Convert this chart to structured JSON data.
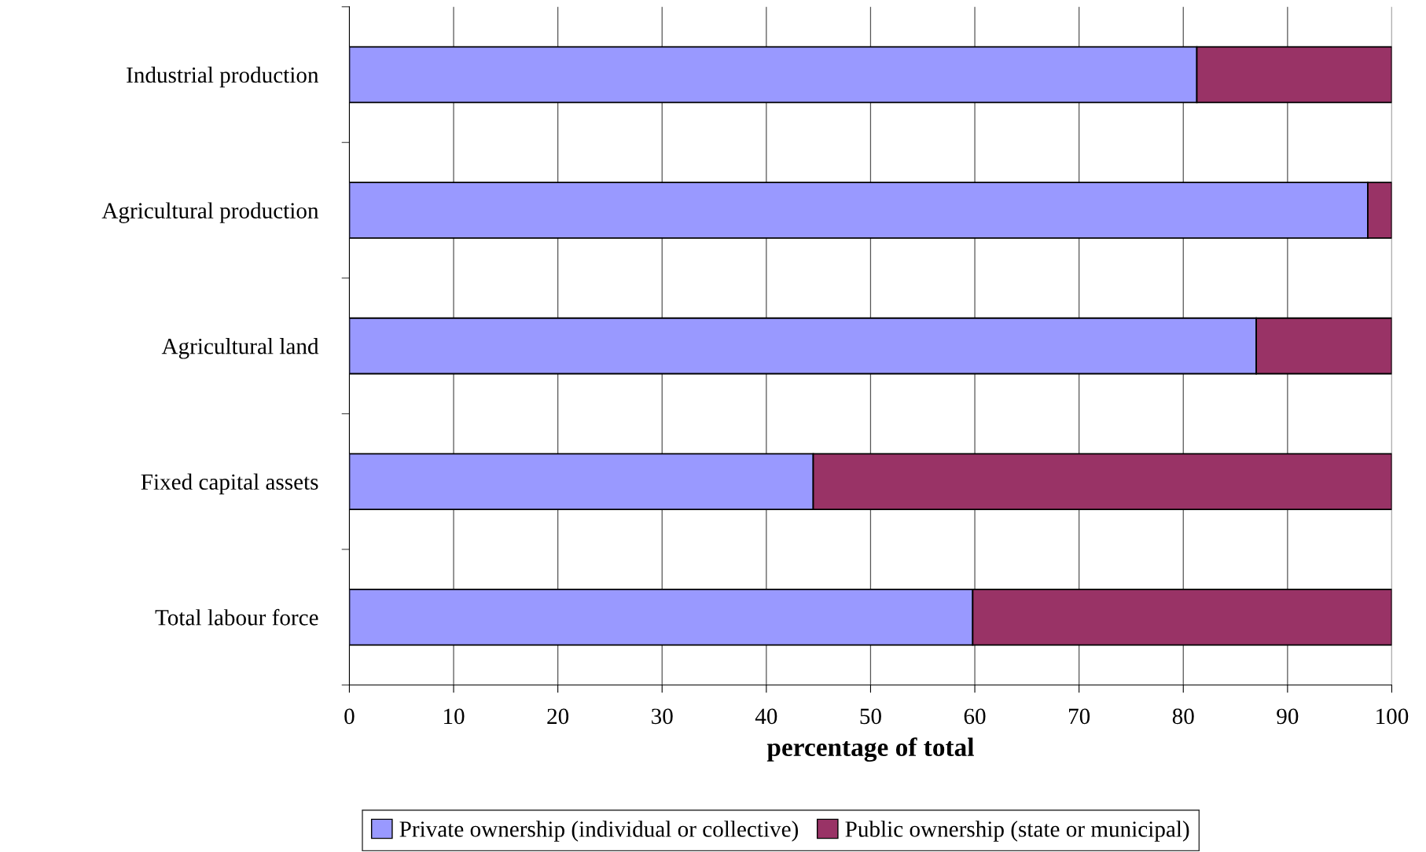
{
  "chart_data": {
    "type": "bar",
    "orientation": "horizontal",
    "stacked": true,
    "xlabel": "percentage of total",
    "categories": [
      "Industrial production",
      "Agricultural production",
      "Agricultural land",
      "Fixed capital assets",
      "Total labour force"
    ],
    "series": [
      {
        "name": "Private ownership (individual or collective)",
        "color": "#9999ff",
        "values": [
          81.3,
          97.7,
          87.0,
          44.5,
          59.8
        ]
      },
      {
        "name": "Public ownership (state or municipal)",
        "color": "#993366",
        "values": [
          18.7,
          2.3,
          13.0,
          55.5,
          40.2
        ]
      }
    ],
    "xlim": [
      0,
      100
    ],
    "xticks": [
      0,
      10,
      20,
      30,
      40,
      50,
      60,
      70,
      80,
      90,
      100
    ],
    "grid": "x",
    "legend": "bottom"
  }
}
